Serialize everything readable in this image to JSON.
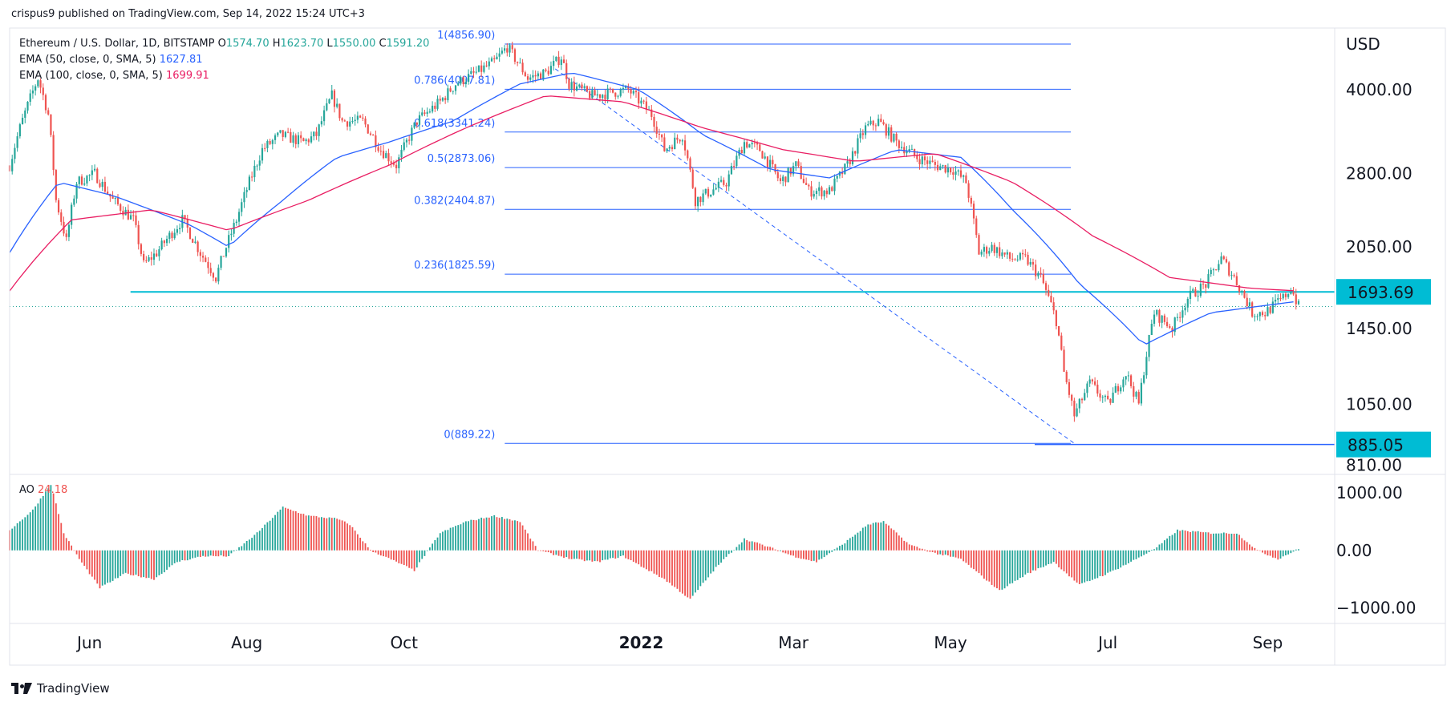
{
  "header": {
    "published": "crispus9 published on TradingView.com, Sep 14, 2022 15:24 UTC+3"
  },
  "footer": {
    "brand": "TradingView"
  },
  "legend": {
    "symbol": "Ethereum / U.S. Dollar, 1D, BITSTAMP",
    "ohlc": [
      {
        "k": "O",
        "v": "1574.70"
      },
      {
        "k": "H",
        "v": "1623.70"
      },
      {
        "k": "L",
        "v": "1550.00"
      },
      {
        "k": "C",
        "v": "1591.20"
      }
    ],
    "ema50_label": "EMA (50, close, 0, SMA, 5)",
    "ema50_value": "1627.81",
    "ema100_label": "EMA (100, close, 0, SMA, 5)",
    "ema100_value": "1699.91",
    "ao_label": "AO",
    "ao_value": "24.18"
  },
  "colors": {
    "up": "#26a69a",
    "down": "#ef5350",
    "ema50": "#2962ff",
    "ema100": "#e91e63",
    "support": "#00bcd4",
    "fib": "#2962ff",
    "label_bg": "#00bcd4"
  },
  "chart_data": [
    {
      "type": "line",
      "title": "Ethereum / U.S. Dollar, 1D, BITSTAMP",
      "ylabel": "USD",
      "scale": "log",
      "ylim": [
        790,
        5200
      ],
      "y_ticks": [
        "4000.00",
        "2800.00",
        "2050.00",
        "1450.00",
        "1050.00",
        "810.00"
      ],
      "y_tick_values": [
        4000,
        2800,
        2050,
        1450,
        1050,
        810
      ],
      "x_ticks": [
        "Jun",
        "Aug",
        "Oct",
        "2022",
        "Mar",
        "May",
        "Jul",
        "Sep"
      ],
      "x_tick_dates": [
        "2021-06-01",
        "2021-08-01",
        "2021-10-01",
        "2022-01-01",
        "2022-03-01",
        "2022-05-01",
        "2022-07-01",
        "2022-09-01"
      ],
      "price_markers": [
        {
          "label": "1693.69",
          "value": 1693.69
        },
        {
          "label": "885.05",
          "value": 885.05
        }
      ],
      "last_close": 1591.2,
      "fibonacci": [
        {
          "label": "1(4856.90)",
          "value": 4856.9
        },
        {
          "label": "0.786(4007.81)",
          "value": 4007.81
        },
        {
          "label": "0.618(3341.24)",
          "value": 3341.24
        },
        {
          "label": "0.5(2873.06)",
          "value": 2873.06
        },
        {
          "label": "0.382(2404.87)",
          "value": 2404.87
        },
        {
          "label": "0.236(1825.59)",
          "value": 1825.59
        },
        {
          "label": "0(889.22)",
          "value": 889.22
        }
      ],
      "fib_range_dates": [
        "2021-11-10",
        "2022-06-18"
      ],
      "support_line": {
        "value": 1693.69,
        "from": "2021-05-23"
      },
      "price_path": [
        [
          "2021-05-01",
          2900
        ],
        [
          "2021-05-05",
          3400
        ],
        [
          "2021-05-12",
          4200
        ],
        [
          "2021-05-16",
          3600
        ],
        [
          "2021-05-19",
          2500
        ],
        [
          "2021-05-23",
          2100
        ],
        [
          "2021-05-27",
          2700
        ],
        [
          "2021-06-03",
          2800
        ],
        [
          "2021-06-10",
          2500
        ],
        [
          "2021-06-18",
          2300
        ],
        [
          "2021-06-22",
          1900
        ],
        [
          "2021-06-27",
          2000
        ],
        [
          "2021-07-07",
          2300
        ],
        [
          "2021-07-14",
          2000
        ],
        [
          "2021-07-20",
          1800
        ],
        [
          "2021-07-28",
          2300
        ],
        [
          "2021-08-07",
          3100
        ],
        [
          "2021-08-14",
          3300
        ],
        [
          "2021-08-23",
          3200
        ],
        [
          "2021-08-28",
          3300
        ],
        [
          "2021-09-03",
          3900
        ],
        [
          "2021-09-07",
          3500
        ],
        [
          "2021-09-15",
          3500
        ],
        [
          "2021-09-22",
          3100
        ],
        [
          "2021-09-28",
          2900
        ],
        [
          "2021-10-06",
          3500
        ],
        [
          "2021-10-15",
          3800
        ],
        [
          "2021-10-21",
          4100
        ],
        [
          "2021-10-29",
          4300
        ],
        [
          "2021-11-05",
          4500
        ],
        [
          "2021-11-10",
          4800
        ],
        [
          "2021-11-18",
          4200
        ],
        [
          "2021-11-25",
          4300
        ],
        [
          "2021-12-01",
          4600
        ],
        [
          "2021-12-04",
          4100
        ],
        [
          "2021-12-13",
          3900
        ],
        [
          "2021-12-20",
          3950
        ],
        [
          "2021-12-27",
          4000
        ],
        [
          "2022-01-05",
          3600
        ],
        [
          "2022-01-10",
          3100
        ],
        [
          "2022-01-17",
          3300
        ],
        [
          "2022-01-22",
          2500
        ],
        [
          "2022-01-28",
          2600
        ],
        [
          "2022-02-03",
          2700
        ],
        [
          "2022-02-10",
          3200
        ],
        [
          "2022-02-16",
          3100
        ],
        [
          "2022-02-24",
          2700
        ],
        [
          "2022-03-02",
          2900
        ],
        [
          "2022-03-07",
          2600
        ],
        [
          "2022-03-15",
          2600
        ],
        [
          "2022-03-22",
          2900
        ],
        [
          "2022-03-29",
          3400
        ],
        [
          "2022-04-03",
          3500
        ],
        [
          "2022-04-10",
          3200
        ],
        [
          "2022-04-18",
          3000
        ],
        [
          "2022-04-25",
          2900
        ],
        [
          "2022-05-02",
          2850
        ],
        [
          "2022-05-07",
          2700
        ],
        [
          "2022-05-12",
          2000
        ],
        [
          "2022-05-17",
          2050
        ],
        [
          "2022-05-24",
          1950
        ],
        [
          "2022-05-30",
          1950
        ],
        [
          "2022-06-05",
          1800
        ],
        [
          "2022-06-11",
          1500
        ],
        [
          "2022-06-14",
          1200
        ],
        [
          "2022-06-18",
          1000
        ],
        [
          "2022-06-24",
          1150
        ],
        [
          "2022-07-01",
          1050
        ],
        [
          "2022-07-08",
          1200
        ],
        [
          "2022-07-13",
          1050
        ],
        [
          "2022-07-19",
          1550
        ],
        [
          "2022-07-26",
          1450
        ],
        [
          "2022-08-01",
          1650
        ],
        [
          "2022-08-08",
          1750
        ],
        [
          "2022-08-14",
          1950
        ],
        [
          "2022-08-19",
          1800
        ],
        [
          "2022-08-26",
          1550
        ],
        [
          "2022-08-31",
          1550
        ],
        [
          "2022-09-07",
          1650
        ],
        [
          "2022-09-10",
          1720
        ],
        [
          "2022-09-13",
          1591
        ]
      ],
      "ema50_path": [
        [
          "2021-05-01",
          2000
        ],
        [
          "2021-05-20",
          2700
        ],
        [
          "2021-06-10",
          2550
        ],
        [
          "2021-07-10",
          2250
        ],
        [
          "2021-07-25",
          2050
        ],
        [
          "2021-08-15",
          2500
        ],
        [
          "2021-09-05",
          3000
        ],
        [
          "2021-09-25",
          3200
        ],
        [
          "2021-10-20",
          3500
        ],
        [
          "2021-11-15",
          4100
        ],
        [
          "2021-12-05",
          4300
        ],
        [
          "2021-12-31",
          4000
        ],
        [
          "2022-01-25",
          3300
        ],
        [
          "2022-02-20",
          2850
        ],
        [
          "2022-03-15",
          2750
        ],
        [
          "2022-04-10",
          3100
        ],
        [
          "2022-05-05",
          3000
        ],
        [
          "2022-05-25",
          2400
        ],
        [
          "2022-06-20",
          1750
        ],
        [
          "2022-07-15",
          1350
        ],
        [
          "2022-08-10",
          1550
        ],
        [
          "2022-09-13",
          1627.81
        ]
      ],
      "ema100_path": [
        [
          "2021-05-01",
          1700
        ],
        [
          "2021-05-25",
          2300
        ],
        [
          "2021-06-25",
          2400
        ],
        [
          "2021-07-25",
          2200
        ],
        [
          "2021-08-25",
          2500
        ],
        [
          "2021-09-25",
          2900
        ],
        [
          "2021-10-25",
          3400
        ],
        [
          "2021-11-25",
          3900
        ],
        [
          "2021-12-25",
          3800
        ],
        [
          "2022-01-25",
          3400
        ],
        [
          "2022-02-25",
          3100
        ],
        [
          "2022-03-25",
          2950
        ],
        [
          "2022-04-25",
          3050
        ],
        [
          "2022-05-25",
          2700
        ],
        [
          "2022-06-25",
          2150
        ],
        [
          "2022-07-25",
          1800
        ],
        [
          "2022-08-25",
          1720
        ],
        [
          "2022-09-13",
          1699.91
        ]
      ]
    },
    {
      "type": "bar",
      "title": "AO",
      "ylim": [
        -1200,
        1250
      ],
      "y_ticks": [
        "1000.00",
        "0.00",
        "−1000.00"
      ],
      "y_tick_values": [
        1000,
        0,
        -1000
      ],
      "last_value": 24.18,
      "series_path": [
        [
          "2021-05-01",
          350
        ],
        [
          "2021-05-10",
          700
        ],
        [
          "2021-05-17",
          1150
        ],
        [
          "2021-05-22",
          300
        ],
        [
          "2021-05-28",
          -150
        ],
        [
          "2021-06-05",
          -650
        ],
        [
          "2021-06-15",
          -400
        ],
        [
          "2021-06-26",
          -500
        ],
        [
          "2021-07-05",
          -200
        ],
        [
          "2021-07-15",
          -100
        ],
        [
          "2021-07-25",
          -100
        ],
        [
          "2021-08-05",
          300
        ],
        [
          "2021-08-15",
          750
        ],
        [
          "2021-08-25",
          600
        ],
        [
          "2021-09-05",
          550
        ],
        [
          "2021-09-10",
          450
        ],
        [
          "2021-09-18",
          0
        ],
        [
          "2021-09-28",
          -200
        ],
        [
          "2021-10-05",
          -350
        ],
        [
          "2021-10-15",
          300
        ],
        [
          "2021-10-25",
          500
        ],
        [
          "2021-11-05",
          600
        ],
        [
          "2021-11-15",
          500
        ],
        [
          "2021-11-22",
          0
        ],
        [
          "2021-12-05",
          -150
        ],
        [
          "2021-12-15",
          -200
        ],
        [
          "2021-12-25",
          -100
        ],
        [
          "2022-01-10",
          -500
        ],
        [
          "2022-01-20",
          -850
        ],
        [
          "2022-01-30",
          -300
        ],
        [
          "2022-02-10",
          200
        ],
        [
          "2022-02-20",
          50
        ],
        [
          "2022-03-01",
          -100
        ],
        [
          "2022-03-10",
          -200
        ],
        [
          "2022-03-20",
          100
        ],
        [
          "2022-03-30",
          450
        ],
        [
          "2022-04-05",
          500
        ],
        [
          "2022-04-15",
          100
        ],
        [
          "2022-04-25",
          -50
        ],
        [
          "2022-05-05",
          -150
        ],
        [
          "2022-05-20",
          -700
        ],
        [
          "2022-05-31",
          -400
        ],
        [
          "2022-06-10",
          -200
        ],
        [
          "2022-06-20",
          -600
        ],
        [
          "2022-07-01",
          -400
        ],
        [
          "2022-07-10",
          -200
        ],
        [
          "2022-07-20",
          50
        ],
        [
          "2022-07-28",
          350
        ],
        [
          "2022-08-10",
          300
        ],
        [
          "2022-08-20",
          300
        ],
        [
          "2022-08-28",
          0
        ],
        [
          "2022-09-05",
          -150
        ],
        [
          "2022-09-13",
          24.18
        ]
      ]
    }
  ]
}
